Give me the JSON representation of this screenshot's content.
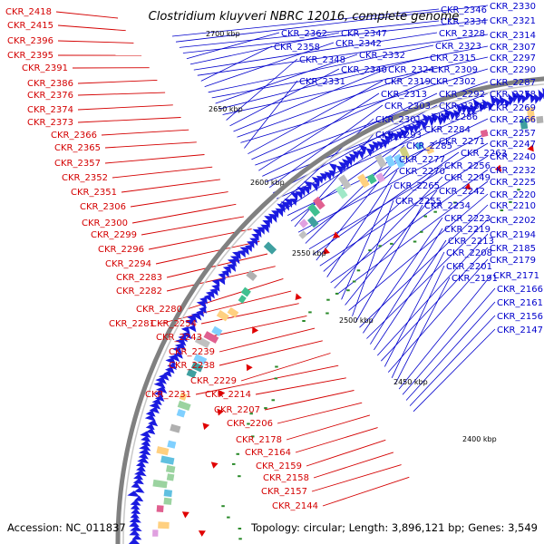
{
  "title": "Clostridium kluyveri NBRC 12016, complete genome",
  "accession_text": "Accession: NC_011837",
  "summary_text": "Topology: circular; Length: 3,896,121 bp; Genes: 3,549",
  "colors": {
    "reverse_label": "#d40000",
    "forward_label": "#0000cc",
    "backbone": "#808080",
    "gene_arrow_blue": "#1a1ae0",
    "gene_arrow_red": "#e00000",
    "tick_green": "#2a8a2a"
  },
  "kbp_ticks": [
    "2700 kbp",
    "2650 kbp",
    "2600 kbp",
    "2550 kbp",
    "2500 kbp",
    "2450 kbp",
    "2400 kbp"
  ],
  "reverse_labels": [
    "CKR_2418",
    "CKR_2415",
    "CKR_2396",
    "CKR_2395",
    "CKR_2391",
    "CKR_2386",
    "CKR_2376",
    "CKR_2374",
    "CKR_2373",
    "CKR_2366",
    "CKR_2365",
    "CKR_2357",
    "CKR_2352",
    "CKR_2351",
    "CKR_2306",
    "CKR_2300",
    "CKR_2299",
    "CKR_2296",
    "CKR_2294",
    "CKR_2283",
    "CKR_2282",
    "CKR_2280",
    "CKR_2281",
    "CKR_2254",
    "CKR_2243",
    "CKR_2239",
    "CKR_2238",
    "CKR_2229",
    "CKR_2231",
    "CKR_2214",
    "CKR_2207",
    "CKR_2206",
    "CKR_2178",
    "CKR_2164",
    "CKR_2159",
    "CKR_2158",
    "CKR_2157",
    "CKR_2144"
  ],
  "forward_labels": [
    "CKR_2346",
    "CKR_2330",
    "CKR_2334",
    "CKR_2321",
    "CKR_2362",
    "CKR_2347",
    "CKR_2328",
    "CKR_2314",
    "CKR_2358",
    "CKR_2342",
    "CKR_2323",
    "CKR_2307",
    "CKR_2332",
    "CKR_2315",
    "CKR_2297",
    "CKR_2348",
    "CKR_2340",
    "CKR_2324",
    "CKR_2309",
    "CKR_2290",
    "CKR_2331",
    "CKR_2319",
    "CKR_2302",
    "CKR_2287",
    "CKR_2313",
    "CKR_2292",
    "CKR_2278",
    "CKR_2303",
    "CKR_2288",
    "CKR_2269",
    "CKR_2301",
    "CKR_2286",
    "CKR_2266",
    "CKR_2284",
    "CKR_2293",
    "CKR_2257",
    "CKR_2271",
    "CKR_2285",
    "CKR_2247",
    "CKR_2263",
    "CKR_2277",
    "CKR_2240",
    "CKR_2256",
    "CKR_2270",
    "CKR_2232",
    "CKR_2249",
    "CKR_2225",
    "CKR_2265",
    "CKR_2242",
    "CKR_2220",
    "CKR_2255",
    "CKR_2234",
    "CKR_2210",
    "CKR_2223",
    "CKR_2202",
    "CKR_2219",
    "CKR_2213",
    "CKR_2194",
    "CKR_2185",
    "CKR_2208",
    "CKR_2179",
    "CKR_2201",
    "CKR_2191",
    "CKR_2171",
    "CKR_2166",
    "CKR_2161",
    "CKR_2156",
    "CKR_2147"
  ]
}
